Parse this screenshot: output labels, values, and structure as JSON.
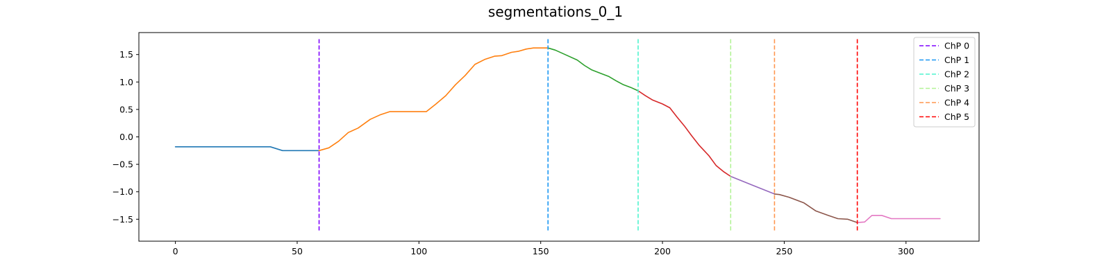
{
  "chart_data": {
    "type": "line",
    "title": "segmentations_0_1",
    "xlabel": "",
    "ylabel": "",
    "xlim": [
      -15,
      330
    ],
    "ylim": [
      -1.9,
      1.9
    ],
    "xticks": [
      0,
      50,
      100,
      150,
      200,
      250,
      300
    ],
    "yticks": [
      -1.5,
      -1.0,
      -0.5,
      0.0,
      0.5,
      1.0,
      1.5
    ],
    "xtick_labels": [
      "0",
      "50",
      "100",
      "150",
      "200",
      "250",
      "300"
    ],
    "ytick_labels": [
      "−1.5",
      "−1.0",
      "−0.5",
      "0.0",
      "0.5",
      "1.0",
      "1.5"
    ],
    "grid": false,
    "legend_position": "top-right",
    "changepoint_ymin": -1.73,
    "changepoint_ymax": 1.78,
    "segment_colors": [
      "#1f77b4",
      "#ff7f0e",
      "#2ca02c",
      "#d62728",
      "#9467bd",
      "#8c564b",
      "#e377c2"
    ],
    "segments": [
      {
        "x": [
          0,
          20,
          39,
          44,
          50,
          59
        ],
        "y": [
          -0.18,
          -0.18,
          -0.18,
          -0.25,
          -0.25,
          -0.25
        ]
      },
      {
        "x": [
          59,
          63,
          67,
          71,
          75,
          80,
          84,
          88,
          95,
          103,
          107,
          111,
          115,
          119,
          123,
          127,
          131,
          134,
          138,
          141,
          144,
          147,
          150,
          153
        ],
        "y": [
          -0.25,
          -0.2,
          -0.08,
          0.08,
          0.16,
          0.32,
          0.4,
          0.46,
          0.46,
          0.46,
          0.6,
          0.75,
          0.95,
          1.12,
          1.32,
          1.41,
          1.47,
          1.48,
          1.54,
          1.56,
          1.6,
          1.62,
          1.62,
          1.62
        ]
      },
      {
        "x": [
          153,
          156,
          160,
          165,
          168,
          171,
          175,
          178,
          181,
          184,
          187,
          190
        ],
        "y": [
          1.62,
          1.58,
          1.5,
          1.4,
          1.3,
          1.22,
          1.15,
          1.1,
          1.02,
          0.95,
          0.9,
          0.84
        ]
      },
      {
        "x": [
          190,
          193,
          196,
          200,
          203,
          206,
          209,
          212,
          215,
          219,
          222,
          225,
          228
        ],
        "y": [
          0.84,
          0.75,
          0.67,
          0.6,
          0.53,
          0.36,
          0.2,
          0.02,
          -0.15,
          -0.34,
          -0.52,
          -0.63,
          -0.72
        ]
      },
      {
        "x": [
          228,
          237,
          246
        ],
        "y": [
          -0.72,
          -0.88,
          -1.04
        ]
      },
      {
        "x": [
          246,
          248,
          252,
          258,
          263,
          268,
          272,
          276,
          280
        ],
        "y": [
          -1.04,
          -1.05,
          -1.1,
          -1.2,
          -1.35,
          -1.43,
          -1.49,
          -1.5,
          -1.56
        ]
      },
      {
        "x": [
          280,
          283,
          286,
          290,
          294,
          300,
          310,
          314
        ],
        "y": [
          -1.56,
          -1.55,
          -1.43,
          -1.43,
          -1.49,
          -1.49,
          -1.49,
          -1.49
        ]
      }
    ],
    "changepoints": [
      {
        "name": "ChP 0",
        "x": 59,
        "color": "#7f00ff"
      },
      {
        "name": "ChP 1",
        "x": 153,
        "color": "#1996f3"
      },
      {
        "name": "ChP 2",
        "x": 190,
        "color": "#4df3ce"
      },
      {
        "name": "ChP 3",
        "x": 228,
        "color": "#b2f396"
      },
      {
        "name": "ChP 4",
        "x": 246,
        "color": "#ff964f"
      },
      {
        "name": "ChP 5",
        "x": 280,
        "color": "#ff0000"
      }
    ]
  }
}
